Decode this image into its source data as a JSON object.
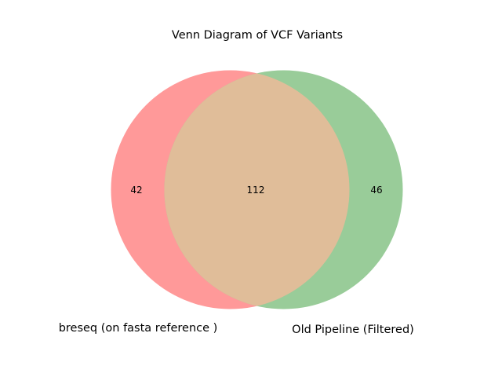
{
  "chart_data": {
    "type": "venn",
    "title": "Venn Diagram of VCF Variants",
    "sets": [
      {
        "name": "breseq (on fasta reference )",
        "only_count": 42,
        "color": "#ff9999"
      },
      {
        "name": "Old Pipeline (Filtered)",
        "only_count": 46,
        "color": "#99cc99"
      }
    ],
    "intersection": {
      "count": 112,
      "color": "#e0bd99"
    }
  }
}
